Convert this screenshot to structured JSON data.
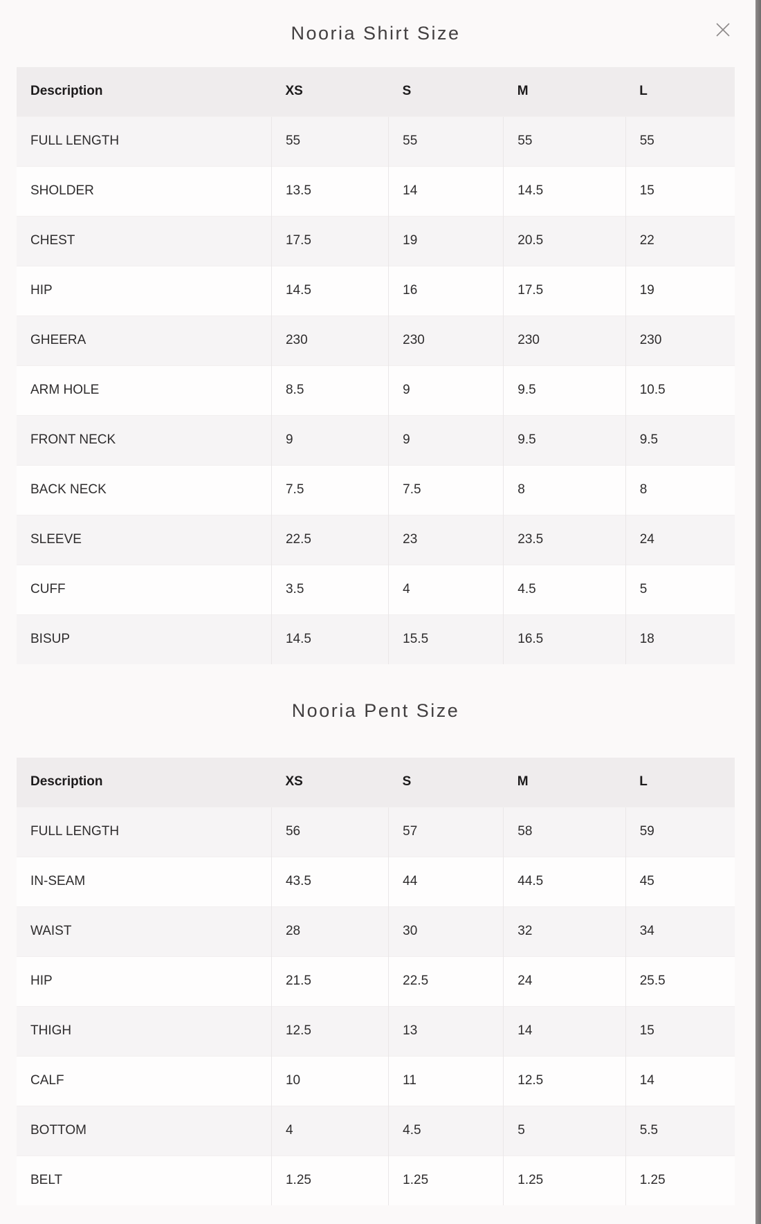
{
  "modal": {
    "close_icon": "x-close"
  },
  "colors": {
    "header_row_bg": "#efeced",
    "striped_row_bg": "#f6f4f5",
    "plain_row_bg": "#fefdfd",
    "scrollbar": "#7b7777",
    "title_text": "#423f40"
  },
  "shirt_table": {
    "title": "Nooria Shirt Size",
    "columns": [
      "Description",
      "XS",
      "S",
      "M",
      "L"
    ],
    "rows": [
      {
        "label": "FULL LENGTH",
        "values": [
          "55",
          "55",
          "55",
          "55"
        ]
      },
      {
        "label": "SHOLDER",
        "values": [
          "13.5",
          "14",
          "14.5",
          "15"
        ]
      },
      {
        "label": "CHEST",
        "values": [
          "17.5",
          "19",
          "20.5",
          "22"
        ]
      },
      {
        "label": "HIP",
        "values": [
          "14.5",
          "16",
          "17.5",
          "19"
        ]
      },
      {
        "label": "GHEERA",
        "values": [
          "230",
          "230",
          "230",
          "230"
        ]
      },
      {
        "label": "ARM HOLE",
        "values": [
          "8.5",
          "9",
          "9.5",
          "10.5"
        ]
      },
      {
        "label": "FRONT NECK",
        "values": [
          "9",
          "9",
          "9.5",
          "9.5"
        ]
      },
      {
        "label": "BACK NECK",
        "values": [
          "7.5",
          "7.5",
          "8",
          "8"
        ]
      },
      {
        "label": "SLEEVE",
        "values": [
          "22.5",
          "23",
          "23.5",
          "24"
        ]
      },
      {
        "label": "CUFF",
        "values": [
          "3.5",
          "4",
          "4.5",
          "5"
        ]
      },
      {
        "label": "BISUP",
        "values": [
          "14.5",
          "15.5",
          "16.5",
          "18"
        ]
      }
    ]
  },
  "pent_table": {
    "title": "Nooria Pent Size",
    "columns": [
      "Description",
      "XS",
      "S",
      "M",
      "L"
    ],
    "rows": [
      {
        "label": "FULL LENGTH",
        "values": [
          "56",
          "57",
          "58",
          "59"
        ]
      },
      {
        "label": "IN-SEAM",
        "values": [
          "43.5",
          "44",
          "44.5",
          "45"
        ]
      },
      {
        "label": "WAIST",
        "values": [
          "28",
          "30",
          "32",
          "34"
        ]
      },
      {
        "label": "HIP",
        "values": [
          "21.5",
          "22.5",
          "24",
          "25.5"
        ]
      },
      {
        "label": "THIGH",
        "values": [
          "12.5",
          "13",
          "14",
          "15"
        ]
      },
      {
        "label": "CALF",
        "values": [
          "10",
          "11",
          "12.5",
          "14"
        ]
      },
      {
        "label": "BOTTOM",
        "values": [
          "4",
          "4.5",
          "5",
          "5.5"
        ]
      },
      {
        "label": "BELT",
        "values": [
          "1.25",
          "1.25",
          "1.25",
          "1.25"
        ]
      }
    ]
  }
}
